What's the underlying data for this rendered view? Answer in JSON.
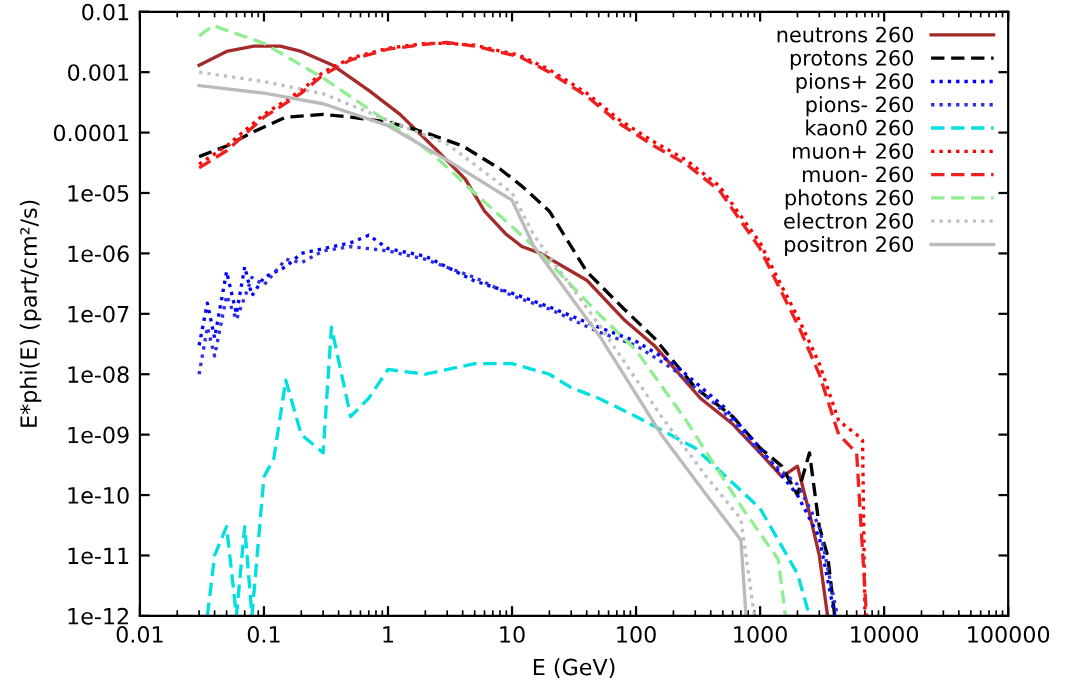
{
  "chart_data": {
    "type": "line",
    "xlabel": "E (GeV)",
    "ylabel": "E*phi(E) (part/cm²/s)",
    "log": "xy",
    "xlim": [
      0.01,
      100000
    ],
    "ylim": [
      1e-12,
      0.01
    ],
    "xticks": [
      0.01,
      0.1,
      1,
      10,
      100,
      1000,
      10000,
      100000
    ],
    "yticks": [
      1e-12,
      1e-11,
      1e-10,
      1e-09,
      1e-08,
      1e-07,
      1e-06,
      1e-05,
      0.0001,
      0.001,
      0.01
    ],
    "grid": false,
    "legend": "top right",
    "marker": "none",
    "series": [
      {
        "name": "neutrons 260",
        "color": "#a52a2a",
        "line_style": "solid",
        "x": [
          0.03,
          0.05,
          0.083,
          0.135,
          0.2,
          0.36,
          0.7,
          1.25,
          2.5,
          4.2,
          6,
          8.9,
          12,
          17,
          40,
          80,
          140,
          330,
          600,
          1000,
          1500,
          2000,
          2500,
          3000,
          3500
        ],
        "values": [
          0.0013,
          0.0022,
          0.0027,
          0.0027,
          0.0022,
          0.0013,
          0.0005,
          0.0002,
          5e-05,
          1.7e-05,
          5e-06,
          2.1e-06,
          1.3e-06,
          1e-06,
          3.6e-07,
          8e-08,
          3e-08,
          4e-09,
          1.5e-09,
          5e-10,
          2e-10,
          3e-10,
          5e-11,
          1e-11,
          1e-12
        ]
      },
      {
        "name": "protons 260",
        "color": "#000000",
        "line_style": "dashed",
        "x": [
          0.03,
          0.05,
          0.08,
          0.15,
          0.3,
          0.5,
          1,
          2,
          4,
          8,
          12,
          20,
          40,
          80,
          140,
          300,
          600,
          1000,
          1500,
          2000,
          2500,
          3000,
          3500,
          4000
        ],
        "values": [
          4e-05,
          6e-05,
          0.0001,
          0.00018,
          0.0002,
          0.00018,
          0.00015,
          0.0001,
          6e-05,
          2.5e-05,
          1.3e-05,
          5e-06,
          5e-07,
          1.2e-07,
          4e-08,
          6e-09,
          2e-09,
          6e-10,
          3e-10,
          1e-10,
          5e-10,
          3e-11,
          1e-11,
          1e-12
        ]
      },
      {
        "name": "pions+ 260",
        "color": "#0000ff",
        "line_style": "dotted",
        "x": [
          0.03,
          0.035,
          0.04,
          0.05,
          0.06,
          0.07,
          0.08,
          0.1,
          0.15,
          0.2,
          0.3,
          0.5,
          0.7,
          1,
          2,
          5,
          10,
          20,
          50,
          100,
          200,
          500,
          1000,
          2000,
          3000,
          4000
        ],
        "values": [
          3e-08,
          1.5e-07,
          4e-08,
          5e-07,
          1e-07,
          6e-07,
          2e-07,
          4e-07,
          6e-07,
          1e-06,
          1.2e-06,
          1.5e-06,
          2e-06,
          1.2e-06,
          9e-07,
          3.5e-07,
          2.2e-07,
          1.3e-07,
          6e-08,
          3.5e-08,
          1.5e-08,
          3e-09,
          6e-10,
          1e-10,
          2e-11,
          1e-12
        ]
      },
      {
        "name": "pions- 260",
        "color": "#3030e0",
        "line_style": "dotted",
        "x": [
          0.03,
          0.035,
          0.04,
          0.05,
          0.06,
          0.08,
          0.1,
          0.15,
          0.2,
          0.3,
          0.5,
          1,
          2,
          5,
          10,
          20,
          50,
          100,
          200,
          500,
          1000,
          2000,
          3000,
          4200
        ],
        "values": [
          1e-08,
          6e-08,
          2e-08,
          2e-07,
          8e-08,
          4e-07,
          3e-07,
          8e-07,
          7e-07,
          1.1e-06,
          1.3e-06,
          1.1e-06,
          8e-07,
          4e-07,
          2e-07,
          1.2e-07,
          5e-08,
          3e-08,
          1.2e-08,
          2.5e-09,
          5e-10,
          1.5e-10,
          3e-11,
          1e-12
        ]
      },
      {
        "name": "kaon0 260",
        "color": "#00e0e0",
        "line_style": "dashed",
        "x": [
          0.035,
          0.04,
          0.05,
          0.06,
          0.07,
          0.08,
          0.1,
          0.12,
          0.15,
          0.2,
          0.3,
          0.35,
          0.5,
          0.7,
          1,
          2,
          5,
          10,
          20,
          30,
          50,
          100,
          300,
          1000,
          2000,
          2500
        ],
        "values": [
          1e-12,
          1e-11,
          3e-11,
          1e-12,
          3e-11,
          1e-12,
          2e-10,
          4e-10,
          8e-09,
          1e-09,
          5e-10,
          6e-08,
          2e-09,
          4e-09,
          1.2e-08,
          1e-08,
          1.5e-08,
          1.5e-08,
          1e-08,
          6e-09,
          4e-09,
          2e-09,
          6e-10,
          6e-11,
          5e-12,
          1e-12
        ]
      },
      {
        "name": "muon+ 260",
        "color": "#ff0000",
        "line_style": "dotted",
        "x": [
          0.03,
          0.05,
          0.1,
          0.2,
          0.3,
          0.5,
          1,
          2,
          3,
          5,
          11.5,
          20,
          40,
          74,
          140,
          254,
          470,
          1000,
          1300,
          2060,
          3000,
          4300,
          6000,
          6700,
          7000
        ],
        "values": [
          3e-05,
          6e-05,
          0.0002,
          0.0005,
          0.001,
          0.0017,
          0.0025,
          0.003,
          0.003,
          0.0028,
          0.0019,
          0.0011,
          0.00045,
          0.00016,
          7e-05,
          3.5e-05,
          1.3e-05,
          1.5e-06,
          5e-07,
          8e-08,
          1.5e-08,
          1.7e-09,
          1e-09,
          8e-10,
          1e-12
        ]
      },
      {
        "name": "muon- 260",
        "color": "#ee2020",
        "line_style": "dashed",
        "x": [
          0.03,
          0.05,
          0.1,
          0.2,
          0.3,
          0.5,
          1,
          2,
          3,
          5,
          11.5,
          20,
          40,
          74,
          140,
          254,
          470,
          1000,
          1300,
          2060,
          3000,
          4300,
          6000,
          7200
        ],
        "values": [
          2.6e-05,
          5e-05,
          0.00018,
          0.00045,
          0.0009,
          0.0016,
          0.0024,
          0.0029,
          0.0031,
          0.0027,
          0.0018,
          0.001,
          0.0004,
          0.00014,
          6e-05,
          3e-05,
          1.1e-05,
          1.2e-06,
          4e-07,
          6e-08,
          1e-08,
          1e-09,
          5e-10,
          1e-12
        ]
      },
      {
        "name": "photons 260",
        "color": "#90ee90",
        "line_style": "dashed",
        "x": [
          0.03,
          0.039,
          0.1,
          0.3,
          1,
          2.3,
          5,
          15,
          50,
          100,
          254,
          700,
          1400,
          1600
        ],
        "values": [
          0.004,
          0.0059,
          0.003,
          0.0008,
          0.00015,
          4.4e-05,
          1e-05,
          1.3e-06,
          1e-07,
          2.5e-08,
          1.7e-09,
          6.6e-11,
          8.6e-12,
          1e-12
        ]
      },
      {
        "name": "electron 260",
        "color": "#c0c0c0",
        "line_style": "dotted",
        "x": [
          0.03,
          0.1,
          0.3,
          1,
          3,
          10,
          15,
          52,
          160,
          370,
          700,
          900
        ],
        "values": [
          0.001,
          0.0007,
          0.00044,
          0.00016,
          6.5e-05,
          1e-05,
          2e-06,
          6e-08,
          2e-09,
          2e-10,
          4e-11,
          1e-12
        ]
      },
      {
        "name": "positron 260",
        "color": "#bbbbbb",
        "line_style": "solid",
        "x": [
          0.03,
          0.1,
          0.3,
          1,
          3,
          10,
          15,
          52,
          160,
          370,
          700,
          770
        ],
        "values": [
          0.0006,
          0.00045,
          0.0003,
          0.00013,
          3.5e-05,
          7.6e-06,
          1.3e-06,
          4e-08,
          1e-09,
          1e-10,
          1.8e-11,
          1e-12
        ]
      }
    ]
  }
}
